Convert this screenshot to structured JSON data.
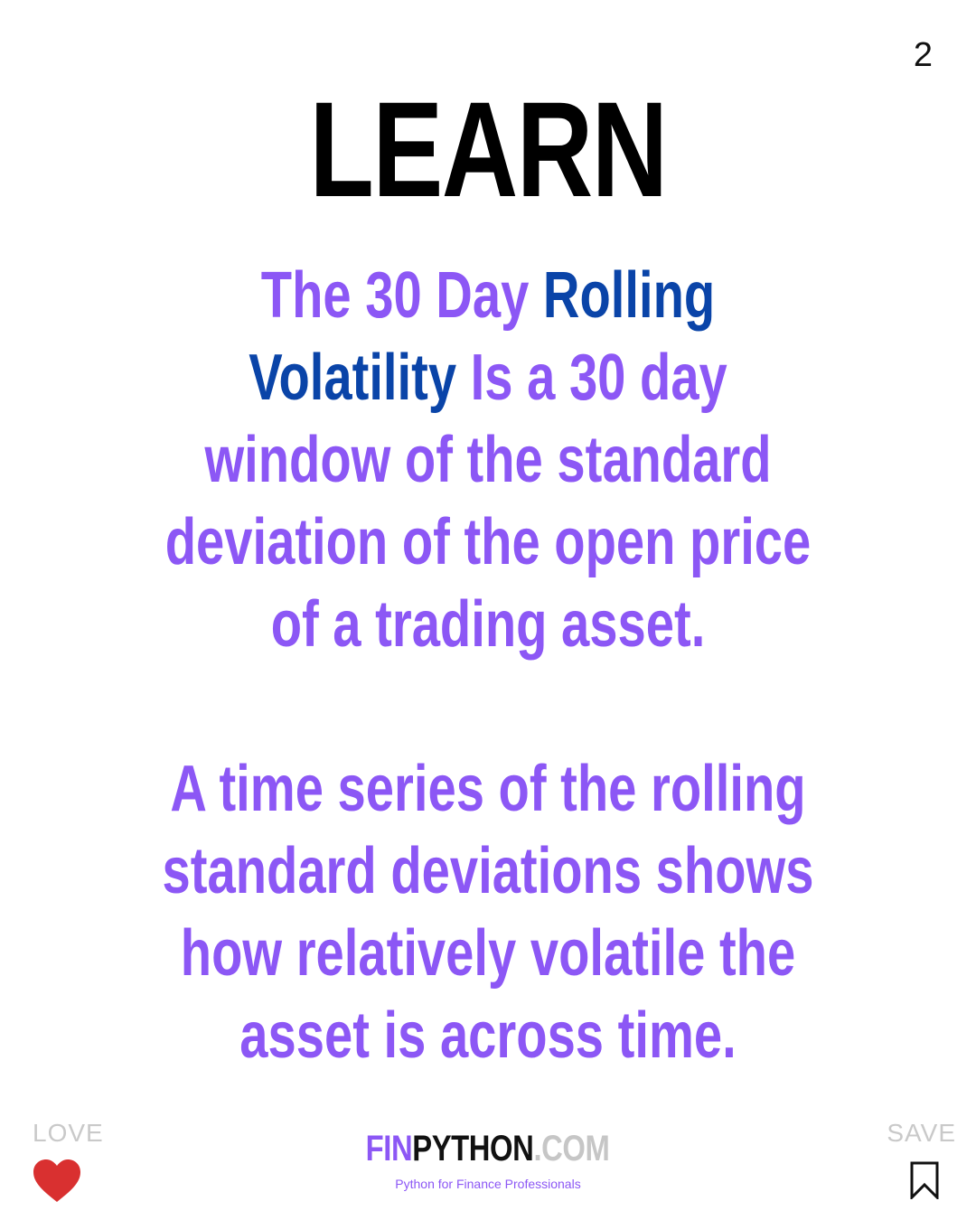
{
  "page_number": "2",
  "title": "LEARN",
  "paragraph_1": {
    "lines": [
      [
        {
          "text": "The 30 Day ",
          "accent": false
        },
        {
          "text": "Rolling",
          "accent": true
        }
      ],
      [
        {
          "text": "Volatility",
          "accent": true
        },
        {
          "text": " Is a 30 day",
          "accent": false
        }
      ],
      [
        {
          "text": "window of the standard",
          "accent": false
        }
      ],
      [
        {
          "text": "deviation of the open price",
          "accent": false
        }
      ],
      [
        {
          "text": "of a trading asset.",
          "accent": false
        }
      ]
    ]
  },
  "paragraph_2": {
    "lines": [
      "A time series of the rolling",
      "standard deviations shows",
      "how relatively volatile the",
      "asset is across time."
    ]
  },
  "footer": {
    "love_label": "LOVE",
    "save_label": "SAVE",
    "brand": {
      "part_1": "FIN",
      "part_2": "PYTHON",
      "part_3": ".COM",
      "tagline": "Python for Finance Professionals"
    }
  },
  "colors": {
    "primary_text": "#8c57f5",
    "accent_text": "#0a44a8",
    "title": "#000000",
    "heart": "#d93030",
    "muted": "#c9c9c9"
  },
  "icons": {
    "love": "heart-icon",
    "save": "bookmark-icon"
  }
}
